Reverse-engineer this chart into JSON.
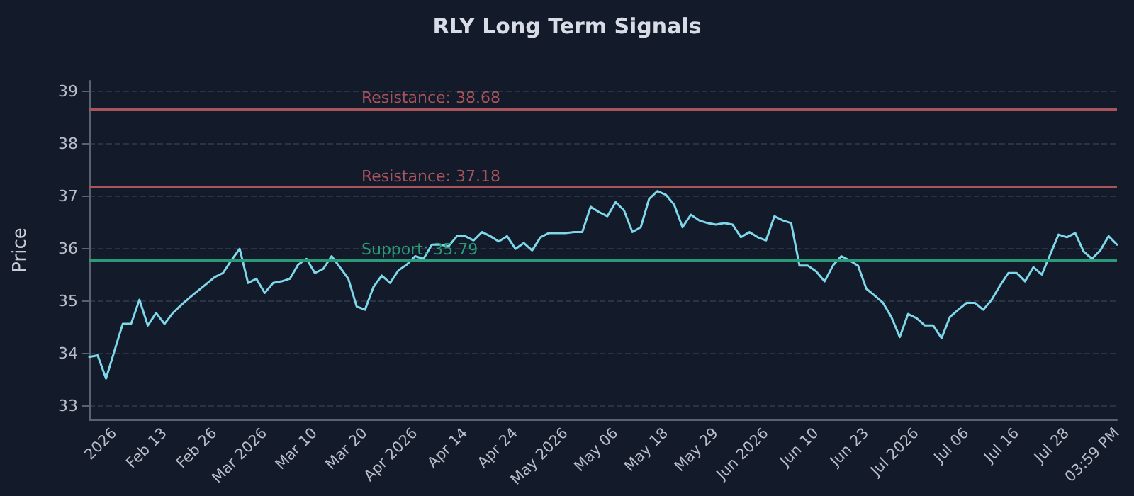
{
  "chart_data": {
    "type": "line",
    "title": "RLY Long Term Signals",
    "ylabel": "Price",
    "categories": [
      null,
      null,
      null,
      "2026",
      null,
      null,
      null,
      null,
      null,
      "Feb 13",
      null,
      null,
      null,
      null,
      null,
      "Feb 26",
      null,
      null,
      null,
      null,
      null,
      "Mar 2026",
      null,
      null,
      null,
      null,
      null,
      "Mar 10",
      null,
      null,
      null,
      null,
      null,
      "Mar 20",
      null,
      null,
      null,
      null,
      null,
      "Apr 2026",
      null,
      null,
      null,
      null,
      null,
      "Apr 14",
      null,
      null,
      null,
      null,
      null,
      "Apr 24",
      null,
      null,
      null,
      null,
      null,
      "May 2026",
      null,
      null,
      null,
      null,
      null,
      "May 06",
      null,
      null,
      null,
      null,
      null,
      "May 18",
      null,
      null,
      null,
      null,
      null,
      "May 29",
      null,
      null,
      null,
      null,
      null,
      "Jun 2026",
      null,
      null,
      null,
      null,
      null,
      "Jun 10",
      null,
      null,
      null,
      null,
      null,
      "Jun 23",
      null,
      null,
      null,
      null,
      null,
      "Jul 2026",
      null,
      null,
      null,
      null,
      null,
      "Jul 06",
      null,
      null,
      null,
      null,
      null,
      "Jul 16",
      null,
      null,
      null,
      null,
      null,
      "Jul 28",
      null,
      null,
      null,
      null,
      null,
      "03:59 PM"
    ],
    "series": [
      {
        "color": "#7fd8ea",
        "values": [
          33.94,
          33.97,
          33.53,
          34.05,
          34.57,
          34.57,
          35.03,
          34.54,
          34.78,
          34.57,
          34.78,
          34.93,
          35.07,
          35.2,
          35.33,
          35.46,
          35.54,
          35.78,
          36.0,
          35.35,
          35.43,
          35.16,
          35.35,
          35.38,
          35.43,
          35.7,
          35.81,
          35.54,
          35.62,
          35.86,
          35.65,
          35.43,
          34.9,
          34.84,
          35.27,
          35.49,
          35.35,
          35.59,
          35.7,
          35.86,
          35.81,
          36.08,
          36.08,
          36.05,
          36.24,
          36.24,
          36.16,
          36.32,
          36.24,
          36.14,
          36.24,
          36.0,
          36.11,
          35.97,
          36.22,
          36.3,
          36.3,
          36.3,
          36.32,
          36.32,
          36.8,
          36.7,
          36.62,
          36.89,
          36.73,
          36.32,
          36.41,
          36.95,
          37.1,
          37.03,
          36.84,
          36.41,
          36.65,
          36.54,
          36.49,
          36.46,
          36.49,
          36.46,
          36.22,
          36.32,
          36.22,
          36.16,
          36.62,
          36.54,
          36.49,
          35.68,
          35.68,
          35.57,
          35.38,
          35.68,
          35.86,
          35.78,
          35.68,
          35.24,
          35.11,
          34.97,
          34.7,
          34.32,
          34.76,
          34.68,
          34.54,
          34.54,
          34.3,
          34.7,
          34.84,
          34.97,
          34.97,
          34.84,
          35.03,
          35.3,
          35.54,
          35.54,
          35.38,
          35.65,
          35.51,
          35.89,
          36.27,
          36.22,
          36.3,
          35.95,
          35.81,
          35.97,
          36.24,
          36.08
        ]
      }
    ],
    "ylim": [
      32.75,
      39.2
    ],
    "yticks": [
      33,
      34,
      35,
      36,
      37,
      38,
      39
    ],
    "grid": "y",
    "marker": "none",
    "line_style": "solid",
    "ref_lines": [
      {
        "axis": "y",
        "value": 38.68,
        "label": "Resistance: 38.68",
        "color": "#a8545c"
      },
      {
        "axis": "y",
        "value": 37.18,
        "label": "Resistance: 37.18",
        "color": "#a8545c"
      },
      {
        "axis": "y",
        "value": 35.79,
        "label": "Support: 35.79",
        "color": "#2a9a78"
      }
    ]
  }
}
